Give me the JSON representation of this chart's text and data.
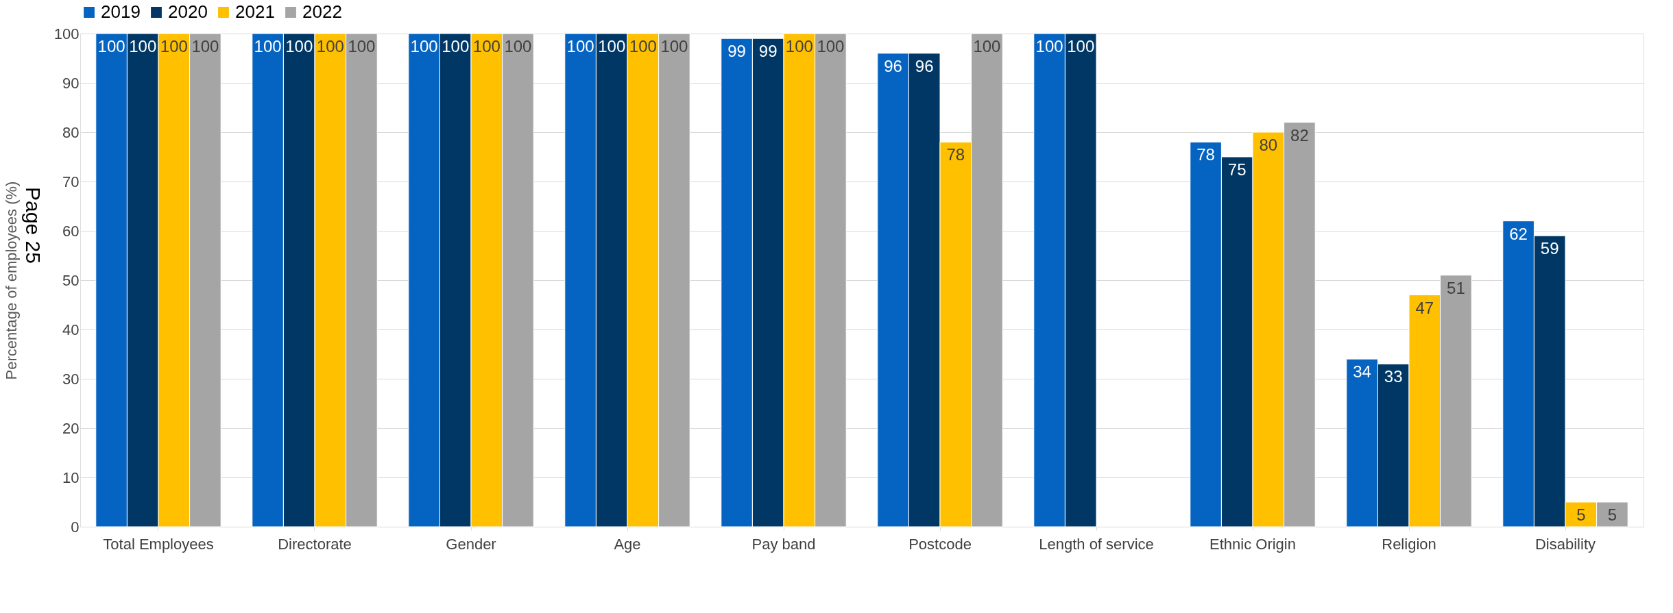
{
  "chart_data": {
    "type": "bar",
    "ylabel": "Percentage of employees (%)",
    "categories": [
      "Total Employees",
      "Directorate",
      "Gender",
      "Age",
      "Pay band",
      "Postcode",
      "Length of service",
      "Ethnic Origin",
      "Religion",
      "Disability"
    ],
    "series": [
      {
        "name": "2019",
        "color": "#0563c1",
        "values": [
          100,
          100,
          100,
          100,
          99,
          96,
          100,
          78,
          34,
          62
        ]
      },
      {
        "name": "2020",
        "color": "#003764",
        "values": [
          100,
          100,
          100,
          100,
          99,
          96,
          100,
          75,
          33,
          59
        ]
      },
      {
        "name": "2021",
        "color": "#ffc000",
        "values": [
          100,
          100,
          100,
          100,
          100,
          78,
          null,
          80,
          47,
          5
        ]
      },
      {
        "name": "2022",
        "color": "#a5a5a5",
        "values": [
          100,
          100,
          100,
          100,
          100,
          100,
          null,
          82,
          51,
          5
        ]
      }
    ],
    "ylim": [
      0,
      100
    ],
    "yticks": [
      0,
      10,
      20,
      30,
      40,
      50,
      60,
      70,
      80,
      90,
      100
    ],
    "grid": "y",
    "legend": "top",
    "data_labels": true,
    "annotations": [
      "Page 25"
    ]
  }
}
